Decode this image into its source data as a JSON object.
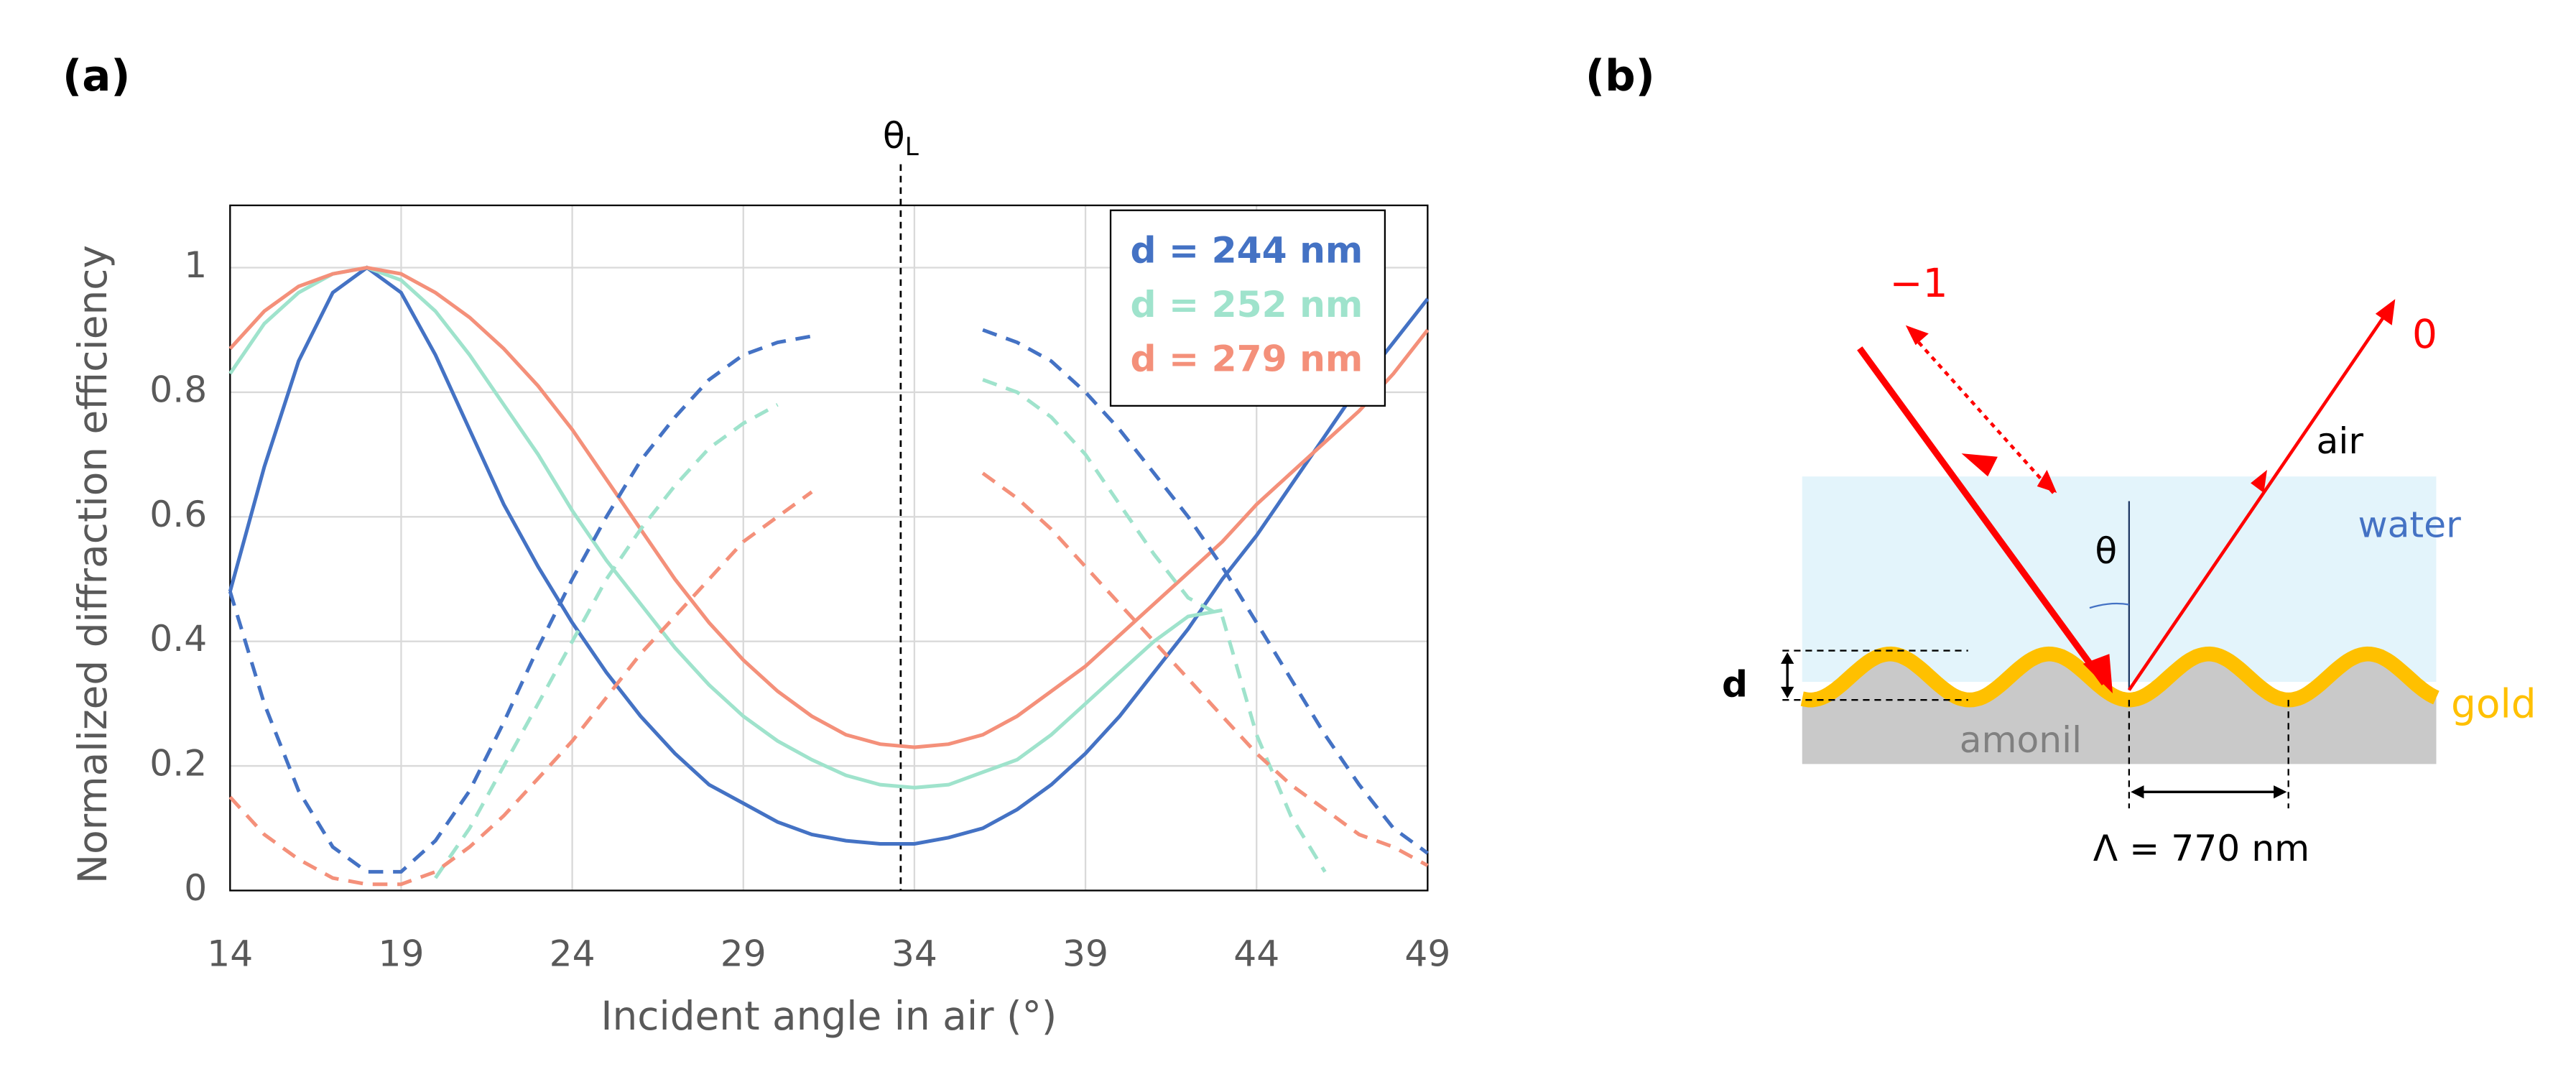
{
  "chart_data": {
    "type": "line",
    "panel_label": "(a)",
    "xlabel": "Incident angle in air (°)",
    "ylabel": "Normalized diffraction efficiency",
    "xlim": [
      14,
      49
    ],
    "xticks": [
      14,
      19,
      24,
      29,
      34,
      39,
      44,
      49
    ],
    "ylim": [
      0,
      1.1
    ],
    "yticks": [
      0,
      0.2,
      0.4,
      0.6,
      0.8,
      1
    ],
    "grid": true,
    "legend": "upper right",
    "annotation": {
      "text": "θ",
      "sub": "L",
      "x": 33.6
    },
    "x": [
      14,
      15,
      16,
      17,
      18,
      19,
      20,
      21,
      22,
      23,
      24,
      25,
      26,
      27,
      28,
      29,
      30,
      31,
      32,
      33,
      34,
      35,
      36,
      37,
      38,
      39,
      40,
      41,
      42,
      43,
      44,
      45,
      46,
      47,
      48,
      49
    ],
    "series": [
      {
        "name": "d = 244 nm",
        "color": "#4472c4",
        "dashed": false,
        "values": [
          0.48,
          0.68,
          0.85,
          0.96,
          1.0,
          0.96,
          0.86,
          0.74,
          0.62,
          0.52,
          0.43,
          0.35,
          0.28,
          0.22,
          0.17,
          0.14,
          0.11,
          0.09,
          0.08,
          0.075,
          0.075,
          0.085,
          0.1,
          0.13,
          0.17,
          0.22,
          0.28,
          0.35,
          0.42,
          0.5,
          0.57,
          0.65,
          0.73,
          0.81,
          0.88,
          0.95
        ]
      },
      {
        "name": "d = 252 nm",
        "color": "#9fe3cc",
        "dashed": false,
        "values": [
          0.83,
          0.91,
          0.96,
          0.99,
          1.0,
          0.98,
          0.93,
          0.86,
          0.78,
          0.7,
          0.61,
          0.53,
          0.46,
          0.39,
          0.33,
          0.28,
          0.24,
          0.21,
          0.185,
          0.17,
          0.165,
          0.17,
          0.19,
          0.21,
          0.25,
          0.3,
          0.35,
          0.4,
          0.44,
          0.45,
          null,
          null,
          null,
          null,
          null,
          null
        ]
      },
      {
        "name": "d = 279 nm",
        "color": "#f4907a",
        "dashed": false,
        "values": [
          0.87,
          0.93,
          0.97,
          0.99,
          1.0,
          0.99,
          0.96,
          0.92,
          0.87,
          0.81,
          0.74,
          0.66,
          0.58,
          0.5,
          0.43,
          0.37,
          0.32,
          0.28,
          0.25,
          0.235,
          0.23,
          0.235,
          0.25,
          0.28,
          0.32,
          0.36,
          0.41,
          0.46,
          0.51,
          0.56,
          0.62,
          0.67,
          0.72,
          0.77,
          0.83,
          0.9
        ]
      },
      {
        "color": "#4472c4",
        "dashed": true,
        "values": [
          0.48,
          0.3,
          0.16,
          0.07,
          0.03,
          0.03,
          0.08,
          0.16,
          0.27,
          0.39,
          0.5,
          0.6,
          0.69,
          0.76,
          0.82,
          0.86,
          0.88,
          0.89,
          null,
          null,
          null,
          null,
          0.9,
          0.88,
          0.85,
          0.8,
          0.74,
          0.67,
          0.6,
          0.52,
          0.43,
          0.34,
          0.25,
          0.17,
          0.1,
          0.06
        ]
      },
      {
        "color": "#9fe3cc",
        "dashed": true,
        "values": [
          null,
          null,
          null,
          null,
          null,
          null,
          0.02,
          0.1,
          0.2,
          0.3,
          0.4,
          0.5,
          0.58,
          0.65,
          0.71,
          0.75,
          0.78,
          null,
          null,
          null,
          null,
          null,
          0.82,
          0.8,
          0.76,
          0.7,
          0.62,
          0.54,
          0.47,
          0.44,
          0.25,
          0.12,
          0.03,
          null,
          null,
          null
        ]
      },
      {
        "color": "#f4907a",
        "dashed": true,
        "values": [
          0.15,
          0.09,
          0.05,
          0.02,
          0.01,
          0.01,
          0.03,
          0.07,
          0.12,
          0.18,
          0.24,
          0.31,
          0.38,
          0.44,
          0.5,
          0.56,
          0.6,
          0.64,
          null,
          null,
          null,
          null,
          0.67,
          0.63,
          0.58,
          0.52,
          0.46,
          0.4,
          0.34,
          0.28,
          0.22,
          0.17,
          0.13,
          0.09,
          0.07,
          0.04
        ]
      }
    ]
  },
  "diagram": {
    "panel_label": "(b)",
    "minus_one": "−1",
    "zero": "0",
    "air": "air",
    "water": "water",
    "theta": "θ",
    "d": "d",
    "gold": "gold",
    "amonil": "amonil",
    "period": "Λ  = 770 nm"
  }
}
